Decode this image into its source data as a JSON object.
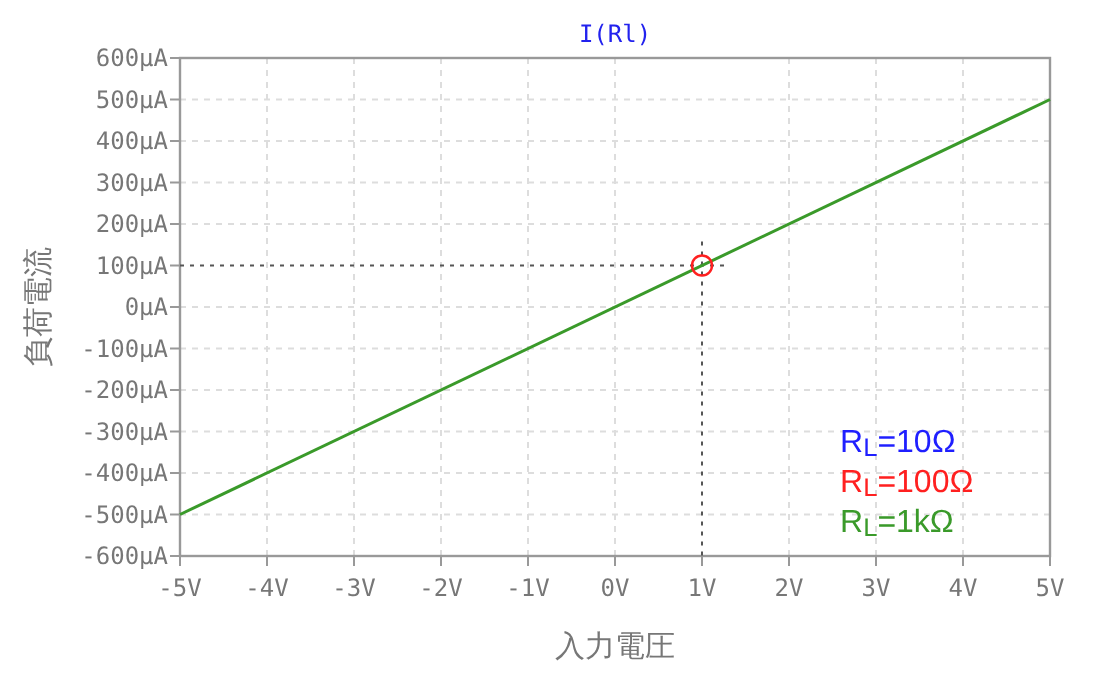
{
  "chart_data": {
    "type": "line",
    "title": "I(Rl)",
    "xlabel": "入力電圧",
    "ylabel": "負荷電流",
    "x": [
      -5,
      5
    ],
    "series": [
      {
        "name": "R$_{L}$=10Ω",
        "color": "#1f1fff",
        "values": [
          null,
          null
        ]
      },
      {
        "name": "R$_{L}$=100Ω",
        "color": "#ff2020",
        "values": [
          null,
          null
        ]
      },
      {
        "name": "R$_{L}$=1kΩ",
        "color": "#3a9a2a",
        "values": [
          -500,
          500
        ]
      },
      {
        "type": "scatter",
        "color": "#ff2020",
        "marker": "circle",
        "x": [
          1
        ],
        "values": [
          100
        ]
      }
    ],
    "xlim": [
      -5,
      5
    ],
    "xticks": [
      {
        "value": -5,
        "label": "-5V"
      },
      {
        "value": -4,
        "label": "-4V"
      },
      {
        "value": -3,
        "label": "-3V"
      },
      {
        "value": -2,
        "label": "-2V"
      },
      {
        "value": -1,
        "label": "-1V"
      },
      {
        "value": 0,
        "label": "0V"
      },
      {
        "value": 1,
        "label": "1V"
      },
      {
        "value": 2,
        "label": "2V"
      },
      {
        "value": 3,
        "label": "3V"
      },
      {
        "value": 4,
        "label": "4V"
      },
      {
        "value": 5,
        "label": "5V"
      }
    ],
    "ylim": [
      -600,
      600
    ],
    "yticks": [
      {
        "value": 600,
        "label": "600μA"
      },
      {
        "value": 500,
        "label": "500μA"
      },
      {
        "value": 400,
        "label": "400μA"
      },
      {
        "value": 300,
        "label": "300μA"
      },
      {
        "value": 200,
        "label": "200μA"
      },
      {
        "value": 100,
        "label": "100μA"
      },
      {
        "value": 0,
        "label": "0μA"
      },
      {
        "value": -100,
        "label": "-100μA"
      },
      {
        "value": -200,
        "label": "-200μA"
      },
      {
        "value": -300,
        "label": "-300μA"
      },
      {
        "value": -400,
        "label": "-400μA"
      },
      {
        "value": -500,
        "label": "-500μA"
      },
      {
        "value": -600,
        "label": "-600μA"
      }
    ],
    "ref_lines": [
      {
        "axis": "y",
        "value": 100,
        "color": "#555555",
        "line_style": "dotted"
      },
      {
        "axis": "x",
        "value": 1,
        "color": "#555555",
        "line_style": "dotted"
      }
    ],
    "grid": true,
    "legend": "bottom right"
  }
}
